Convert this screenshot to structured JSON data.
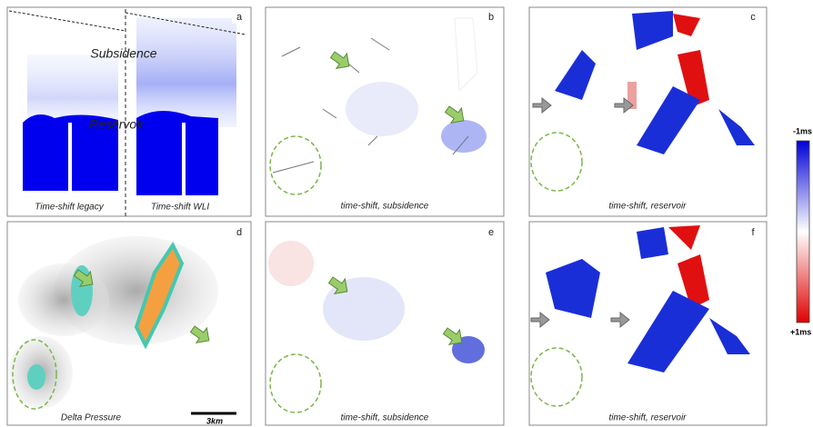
{
  "panel_a": {
    "subsidence": "Subsidence",
    "reservoir": "Reservoir",
    "left_caption": "Time-shift legacy",
    "right_caption": "Time-shift WLI"
  },
  "panel_d": {
    "scale": "3km"
  },
  "panels": [
    {
      "letter": "a"
    },
    {
      "letter": "b",
      "caption": "time-shift, subsidence"
    },
    {
      "letter": "c",
      "caption": "time-shift, reservoir"
    },
    {
      "letter": "d",
      "caption": "Delta Pressure"
    },
    {
      "letter": "e",
      "caption": "time-shift, subsidence"
    },
    {
      "letter": "f",
      "caption": "time-shift, reservoir"
    }
  ],
  "colorbar": {
    "top": "-1ms",
    "bottom": "+1ms"
  }
}
